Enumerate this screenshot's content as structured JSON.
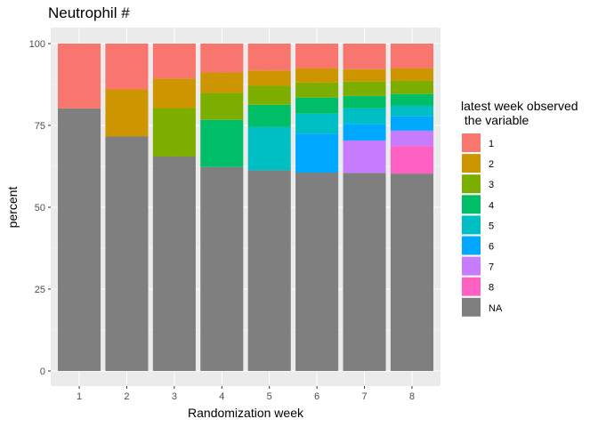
{
  "chart_data": {
    "type": "bar",
    "stacked": true,
    "title": "Neutrophil #",
    "xlabel": "Randomization week",
    "ylabel": "percent",
    "categories": [
      "1",
      "2",
      "3",
      "4",
      "5",
      "6",
      "7",
      "8"
    ],
    "ylim": [
      0,
      100
    ],
    "yticks": [
      0,
      25,
      50,
      75,
      100
    ],
    "grid": true,
    "legend_position": "right",
    "legend_title": [
      "latest week observed",
      " the variable"
    ],
    "series": [
      {
        "name": "NA",
        "color": "#7f7f7f",
        "values": [
          80.2,
          71.6,
          65.5,
          62.3,
          61.3,
          60.6,
          60.5,
          60.3
        ]
      },
      {
        "name": "8",
        "color": "#FF61C3",
        "values": [
          0,
          0,
          0,
          0,
          0,
          0,
          0,
          8.4
        ]
      },
      {
        "name": "7",
        "color": "#C77CFF",
        "values": [
          0,
          0,
          0,
          0,
          0,
          0,
          9.9,
          4.7
        ]
      },
      {
        "name": "6",
        "color": "#00A9FF",
        "values": [
          0,
          0,
          0,
          0,
          0,
          11.9,
          5.1,
          4.4
        ]
      },
      {
        "name": "5",
        "color": "#00BFC4",
        "values": [
          0,
          0,
          0,
          0,
          13.2,
          6.1,
          4.7,
          3.2
        ]
      },
      {
        "name": "4",
        "color": "#00BE67",
        "values": [
          0,
          0,
          0,
          14.4,
          6.8,
          4.9,
          3.8,
          3.6
        ]
      },
      {
        "name": "3",
        "color": "#7CAE00",
        "values": [
          0,
          0,
          14.8,
          8.2,
          5.8,
          4.6,
          4.4,
          4.0
        ]
      },
      {
        "name": "2",
        "color": "#CD9600",
        "values": [
          0,
          14.4,
          9.0,
          6.3,
          4.7,
          4.3,
          3.8,
          3.8
        ]
      },
      {
        "name": "1",
        "color": "#F8766D",
        "values": [
          19.8,
          14.0,
          10.7,
          8.8,
          8.2,
          7.6,
          7.8,
          7.6
        ]
      }
    ],
    "legend_order": [
      "1",
      "2",
      "3",
      "4",
      "5",
      "6",
      "7",
      "8",
      "NA"
    ]
  }
}
